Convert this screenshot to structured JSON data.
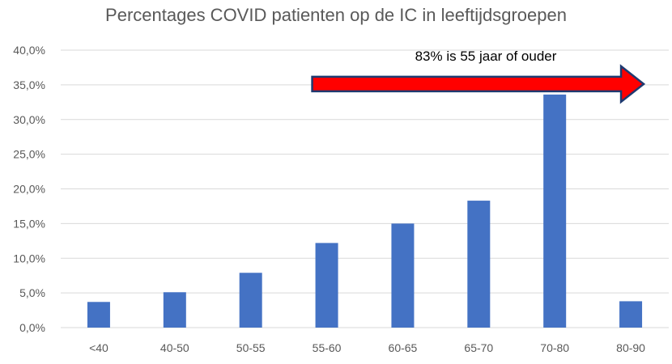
{
  "chart_data": {
    "type": "bar",
    "title": "Percentages COVID patienten op de IC in leeftijdsgroepen",
    "xlabel": "",
    "ylabel": "",
    "categories": [
      "<40",
      "40-50",
      "50-55",
      "55-60",
      "60-65",
      "65-70",
      "70-80",
      "80-90"
    ],
    "values": [
      3.7,
      5.1,
      7.9,
      12.2,
      15.0,
      18.3,
      33.6,
      3.8
    ],
    "ylim": [
      0,
      40
    ],
    "yticks": [
      0,
      5,
      10,
      15,
      20,
      25,
      30,
      35,
      40
    ],
    "ytick_labels": [
      "0,0%",
      "5,0%",
      "10,0%",
      "15,0%",
      "20,0%",
      "25,0%",
      "30,0%",
      "35,0%",
      "40,0%"
    ],
    "grid": true,
    "legend": "none",
    "bar_color": "#4472C4",
    "grid_color": "#D9D9D9",
    "annotation": {
      "text": "83% is 55 jaar of ouder",
      "arrow_color": "#FF0000",
      "arrow_from_category": "55-60",
      "arrow_to_category": "80-90",
      "arrow_value": 35
    }
  }
}
